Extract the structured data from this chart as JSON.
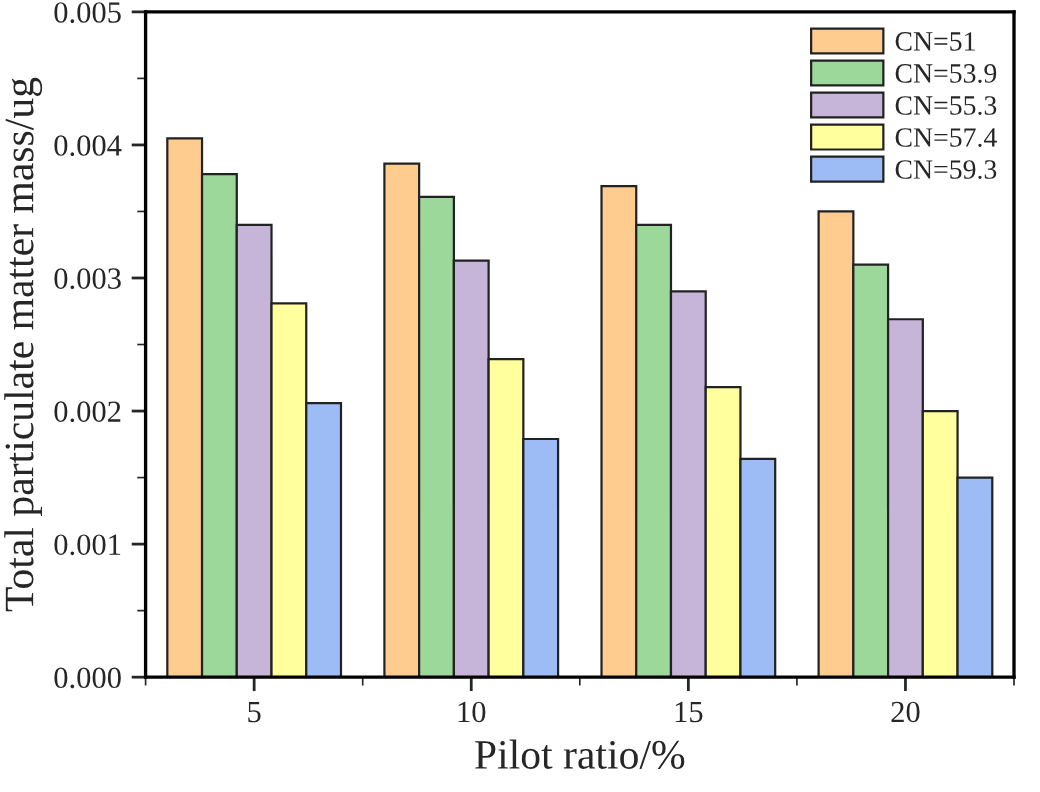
{
  "chart_data": {
    "type": "bar",
    "xlabel": "Pilot ratio/%",
    "ylabel": "Total particulate matter mass/ug",
    "categories": [
      "5",
      "10",
      "15",
      "20"
    ],
    "series": [
      {
        "name": "CN=51",
        "color": "#ffcc8f",
        "values": [
          0.00405,
          0.00386,
          0.00369,
          0.0035
        ]
      },
      {
        "name": "CN=53.9",
        "color": "#9dd89b",
        "values": [
          0.00378,
          0.00361,
          0.0034,
          0.0031
        ]
      },
      {
        "name": "CN=55.3",
        "color": "#c7b4d9",
        "values": [
          0.0034,
          0.00313,
          0.0029,
          0.00269
        ]
      },
      {
        "name": "CN=57.4",
        "color": "#ffff9e",
        "values": [
          0.00281,
          0.00239,
          0.00218,
          0.002
        ]
      },
      {
        "name": "CN=59.3",
        "color": "#9dbcf5",
        "values": [
          0.00206,
          0.00179,
          0.00164,
          0.0015
        ]
      }
    ],
    "ylim": [
      0,
      0.005
    ],
    "yticks": [
      {
        "value": 0,
        "label": "0.000"
      },
      {
        "value": 0.001,
        "label": "0.001"
      },
      {
        "value": 0.002,
        "label": "0.002"
      },
      {
        "value": 0.003,
        "label": "0.003"
      },
      {
        "value": 0.004,
        "label": "0.004"
      },
      {
        "value": 0.005,
        "label": "0.005"
      }
    ],
    "grid": false,
    "legend": "top right"
  }
}
